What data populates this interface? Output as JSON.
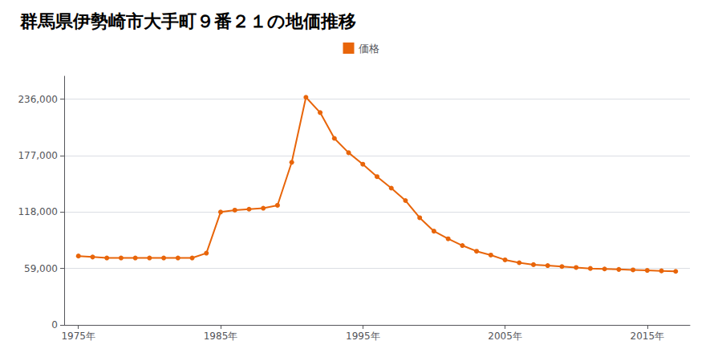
{
  "chart_data": {
    "type": "line",
    "title": "群馬県伊勢崎市大手町９番２１の地価推移",
    "x": [
      1975,
      1976,
      1977,
      1978,
      1979,
      1980,
      1981,
      1982,
      1983,
      1984,
      1985,
      1986,
      1987,
      1988,
      1989,
      1990,
      1991,
      1992,
      1993,
      1994,
      1995,
      1996,
      1997,
      1998,
      1999,
      2000,
      2001,
      2002,
      2003,
      2004,
      2005,
      2006,
      2007,
      2008,
      2009,
      2010,
      2011,
      2012,
      2013,
      2014,
      2015,
      2016,
      2017
    ],
    "series": [
      {
        "name": "価格",
        "color": "#e8650a",
        "marker": "circle",
        "values": [
          72000,
          71000,
          70000,
          70000,
          70000,
          70000,
          70000,
          70000,
          70000,
          75000,
          118000,
          120000,
          121000,
          122000,
          125000,
          170000,
          238000,
          222000,
          195000,
          180000,
          168000,
          155000,
          143000,
          130000,
          112000,
          98000,
          90000,
          83000,
          77000,
          73000,
          68000,
          65000,
          63000,
          62000,
          61000,
          60000,
          59000,
          58500,
          58000,
          57500,
          57000,
          56500,
          56000
        ]
      }
    ],
    "xlim": [
      1974,
      2018
    ],
    "xticks": [
      {
        "value": 1975,
        "label": "1975年"
      },
      {
        "value": 1985,
        "label": "1985年"
      },
      {
        "value": 1995,
        "label": "1995年"
      },
      {
        "value": 2005,
        "label": "2005年"
      },
      {
        "value": 2015,
        "label": "2015年"
      }
    ],
    "ylim": [
      0,
      260000
    ],
    "yticks": [
      0,
      {
        "value": 59000,
        "label": "59,000"
      },
      {
        "value": 118000,
        "label": "118,000"
      },
      {
        "value": 177000,
        "label": "177,000"
      },
      {
        "value": 236000,
        "label": "236,000"
      }
    ],
    "grid": true,
    "legend": "top"
  }
}
